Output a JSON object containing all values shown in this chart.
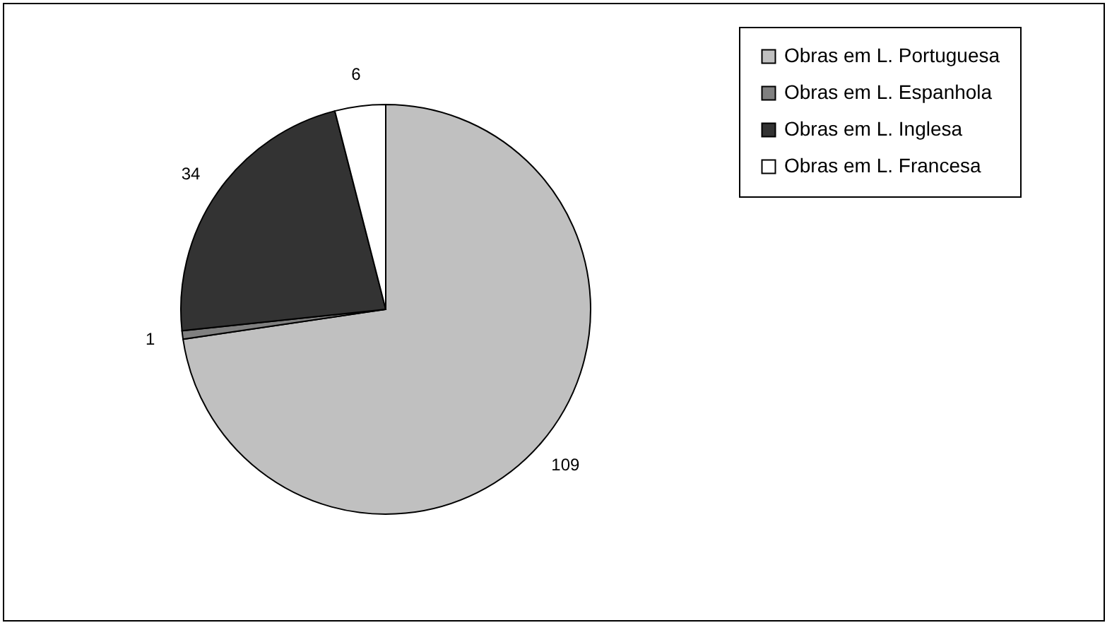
{
  "chart_data": {
    "type": "pie",
    "categories": [
      "Obras em L. Portuguesa",
      "Obras em L. Espanhola",
      "Obras em L. Inglesa",
      "Obras em L. Francesa"
    ],
    "values": [
      109,
      1,
      34,
      6
    ],
    "colors": [
      "#c0c0c0",
      "#808080",
      "#333333",
      "#ffffff"
    ],
    "data_labels": true,
    "legend": "right"
  }
}
